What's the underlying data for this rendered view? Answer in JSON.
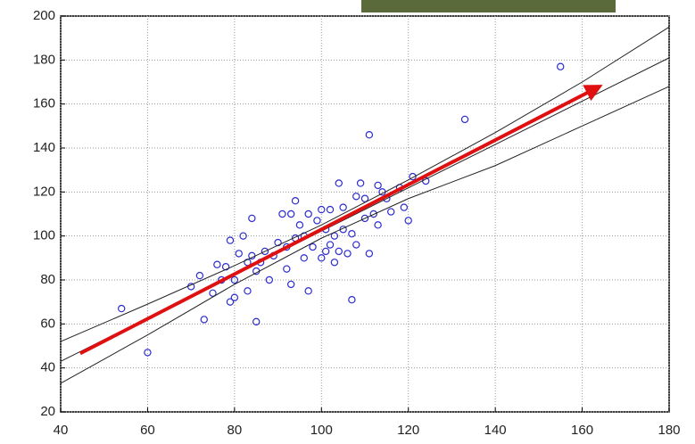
{
  "chart_data": {
    "type": "scatter",
    "xlim": [
      40,
      180
    ],
    "xticks": [
      40,
      60,
      80,
      100,
      120,
      140,
      160,
      180
    ],
    "ylim": [
      20,
      200
    ],
    "yticks": [
      20,
      40,
      60,
      80,
      100,
      120,
      140,
      160,
      180,
      200
    ],
    "grid": true,
    "series": [
      {
        "type": "scatter",
        "color": "#2b2bd0",
        "x": [
          54,
          60,
          70,
          72,
          73,
          75,
          76,
          77,
          78,
          79,
          79,
          80,
          80,
          81,
          82,
          83,
          83,
          84,
          84,
          85,
          85,
          86,
          87,
          88,
          89,
          90,
          91,
          92,
          92,
          93,
          93,
          94,
          94,
          95,
          96,
          96,
          97,
          97,
          98,
          99,
          100,
          100,
          101,
          101,
          102,
          102,
          103,
          103,
          104,
          104,
          105,
          105,
          106,
          107,
          107,
          108,
          108,
          109,
          110,
          110,
          111,
          111,
          112,
          113,
          113,
          114,
          115,
          116,
          118,
          119,
          120,
          121,
          124,
          133,
          155
        ],
        "values": [
          67,
          47,
          77,
          82,
          62,
          74,
          87,
          80,
          86,
          70,
          98,
          80,
          72,
          92,
          100,
          75,
          88,
          91,
          108,
          84,
          61,
          88,
          93,
          80,
          91,
          97,
          110,
          95,
          85,
          110,
          78,
          116,
          99,
          105,
          90,
          100,
          75,
          110,
          95,
          107,
          112,
          90,
          103,
          93,
          112,
          96,
          100,
          88,
          124,
          93,
          113,
          103,
          92,
          101,
          71,
          118,
          96,
          124,
          117,
          108,
          92,
          146,
          110,
          105,
          123,
          120,
          117,
          111,
          122,
          113,
          107,
          127,
          125,
          153,
          177
        ]
      },
      {
        "type": "line",
        "color": "#222",
        "x": [
          40,
          60,
          80,
          100,
          120,
          140,
          160,
          180
        ],
        "values": [
          52,
          69,
          86.5,
          105,
          125.5,
          147,
          170,
          195
        ]
      },
      {
        "type": "line",
        "color": "#222",
        "x": [
          40,
          60,
          80,
          100,
          120,
          140,
          160,
          180
        ],
        "values": [
          43,
          62.7,
          82.4,
          102.2,
          121.9,
          141.6,
          161.3,
          181
        ]
      },
      {
        "type": "line",
        "color": "#222",
        "x": [
          40,
          60,
          80,
          100,
          120,
          140,
          160,
          180
        ],
        "values": [
          33,
          55,
          78,
          99,
          117,
          132,
          150,
          168
        ]
      },
      {
        "type": "arrow",
        "color": "#e01010",
        "x": [
          44.5,
          164
        ],
        "values": [
          46.6,
          168
        ]
      }
    ]
  }
}
